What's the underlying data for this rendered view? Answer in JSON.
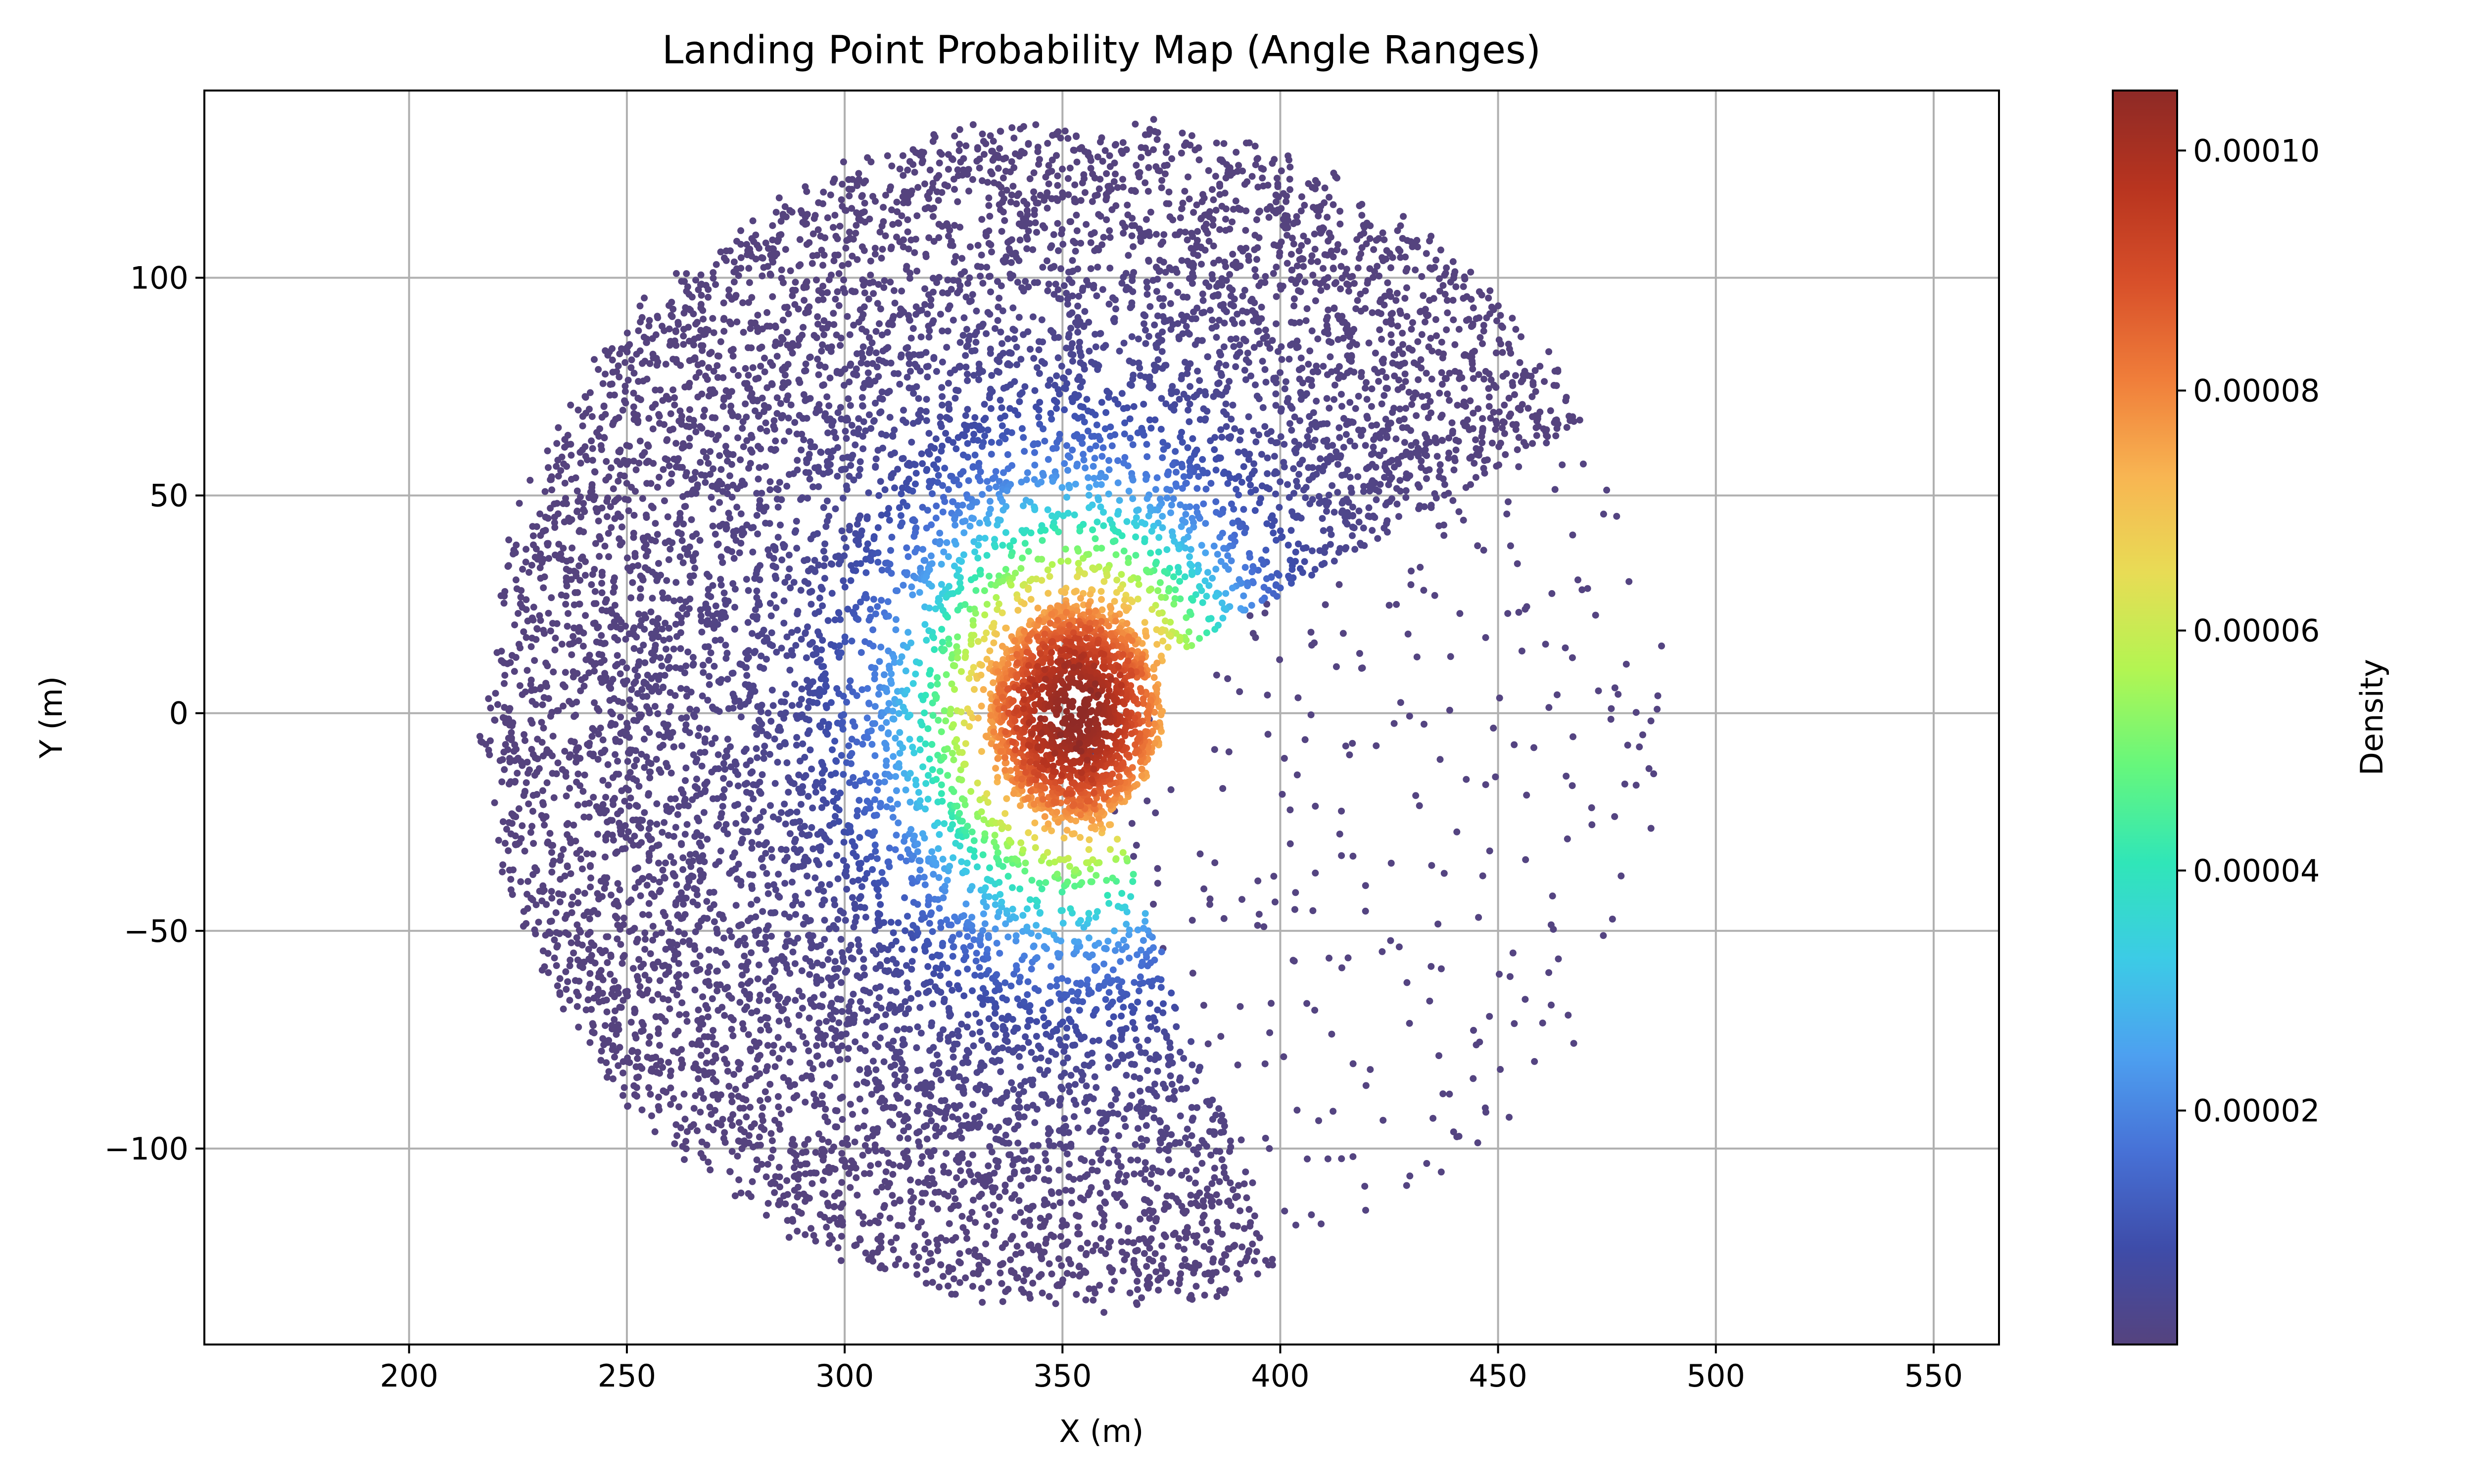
{
  "chart_data": {
    "type": "scatter",
    "title": "Landing Point Probability Map (Angle Ranges)",
    "xlabel": "X (m)",
    "ylabel": "Y (m)",
    "xlim": [
      153,
      565
    ],
    "ylim": [
      -145,
      143
    ],
    "x_ticks": [
      200,
      250,
      300,
      350,
      400,
      450,
      500,
      550
    ],
    "y_ticks": [
      -100,
      -50,
      0,
      50,
      100
    ],
    "x_tick_labels": [
      "200",
      "250",
      "300",
      "350",
      "400",
      "450",
      "500",
      "550"
    ],
    "y_tick_labels": [
      "−100",
      "−50",
      "0",
      "50",
      "100"
    ],
    "grid": true,
    "colorbar": {
      "label": "Density",
      "range": [
        5e-07,
        0.000105
      ],
      "ticks": [
        2e-05,
        4e-05,
        6e-05,
        8e-05,
        0.0001
      ],
      "tick_labels": [
        "0.00002",
        "0.00004",
        "0.00006",
        "0.00008",
        "0.00010"
      ],
      "colormap": [
        "#55437e",
        "#3e4ca9",
        "#4771d6",
        "#4da0f0",
        "#3ccbe6",
        "#30e6b8",
        "#66f77c",
        "#b3f552",
        "#e8dc55",
        "#f8b552",
        "#f07e3a",
        "#d8502a",
        "#b8341f",
        "#8e2a26"
      ]
    },
    "distribution": {
      "center": [
        353,
        0
      ],
      "inner_radius": 5,
      "outer_radius": 135,
      "sparse_sector_degrees": [
        -70,
        30
      ],
      "density_peak": 0.000105,
      "density_scale_radius": 34,
      "sparse_sector_density": 1e-06
    }
  }
}
